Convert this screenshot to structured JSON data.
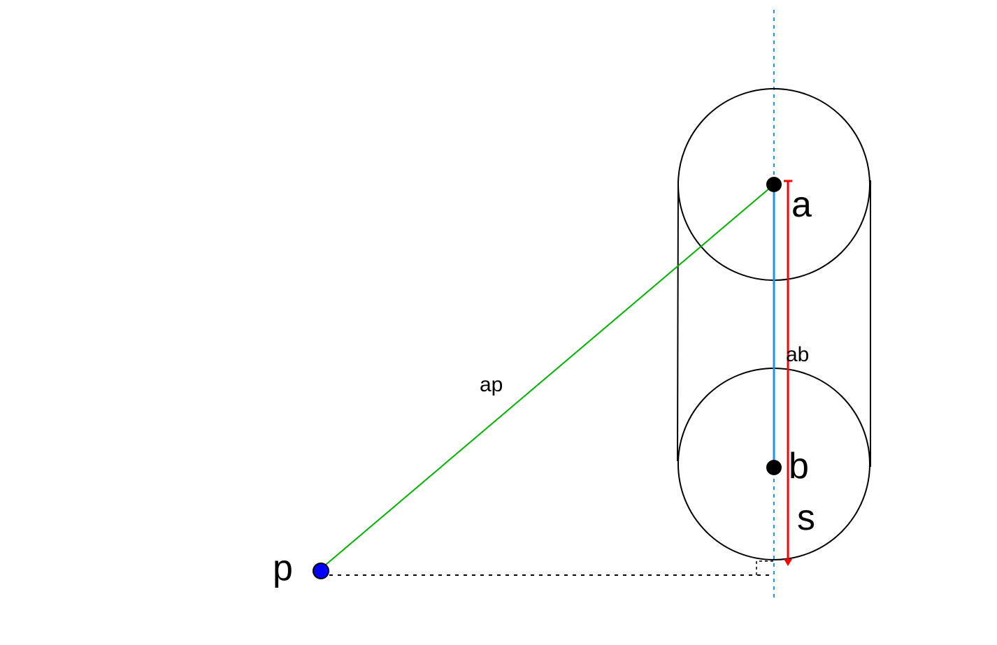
{
  "labels": {
    "point_a": "a",
    "point_b": "b",
    "point_p": "p",
    "segment_ap": "ap",
    "segment_ab": "ab",
    "projection_s": "s"
  },
  "colors": {
    "axis": "#1e9bd7",
    "segment_ab": "#1e90ff",
    "projection": "#ff0000",
    "segment_ap": "#00b000",
    "point_p_fill": "#0000ff",
    "outline": "#000000"
  }
}
